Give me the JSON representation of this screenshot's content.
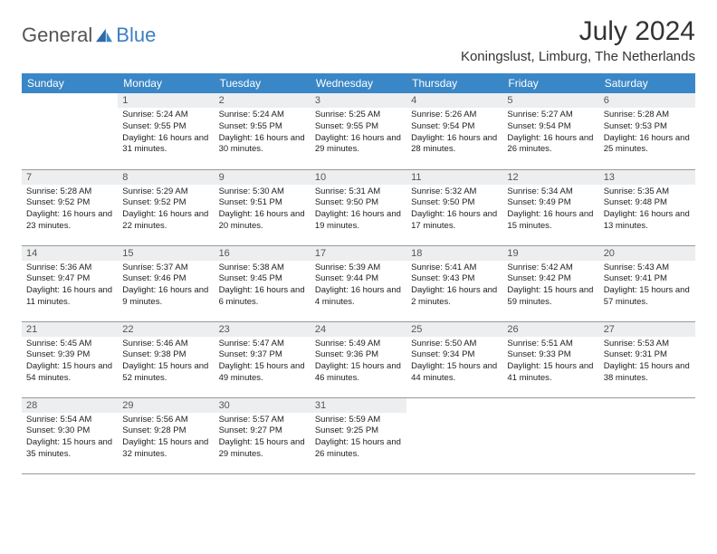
{
  "brand": {
    "part1": "General",
    "part2": "Blue"
  },
  "title": "July 2024",
  "location": "Koningslust, Limburg, The Netherlands",
  "colors": {
    "accent": "#3a87c7",
    "daynum_bg": "#eceef0",
    "border": "#999999"
  },
  "weekdays": [
    "Sunday",
    "Monday",
    "Tuesday",
    "Wednesday",
    "Thursday",
    "Friday",
    "Saturday"
  ],
  "weeks": [
    [
      null,
      {
        "n": "1",
        "sr": "5:24 AM",
        "ss": "9:55 PM",
        "dl": "16 hours and 31 minutes."
      },
      {
        "n": "2",
        "sr": "5:24 AM",
        "ss": "9:55 PM",
        "dl": "16 hours and 30 minutes."
      },
      {
        "n": "3",
        "sr": "5:25 AM",
        "ss": "9:55 PM",
        "dl": "16 hours and 29 minutes."
      },
      {
        "n": "4",
        "sr": "5:26 AM",
        "ss": "9:54 PM",
        "dl": "16 hours and 28 minutes."
      },
      {
        "n": "5",
        "sr": "5:27 AM",
        "ss": "9:54 PM",
        "dl": "16 hours and 26 minutes."
      },
      {
        "n": "6",
        "sr": "5:28 AM",
        "ss": "9:53 PM",
        "dl": "16 hours and 25 minutes."
      }
    ],
    [
      {
        "n": "7",
        "sr": "5:28 AM",
        "ss": "9:52 PM",
        "dl": "16 hours and 23 minutes."
      },
      {
        "n": "8",
        "sr": "5:29 AM",
        "ss": "9:52 PM",
        "dl": "16 hours and 22 minutes."
      },
      {
        "n": "9",
        "sr": "5:30 AM",
        "ss": "9:51 PM",
        "dl": "16 hours and 20 minutes."
      },
      {
        "n": "10",
        "sr": "5:31 AM",
        "ss": "9:50 PM",
        "dl": "16 hours and 19 minutes."
      },
      {
        "n": "11",
        "sr": "5:32 AM",
        "ss": "9:50 PM",
        "dl": "16 hours and 17 minutes."
      },
      {
        "n": "12",
        "sr": "5:34 AM",
        "ss": "9:49 PM",
        "dl": "16 hours and 15 minutes."
      },
      {
        "n": "13",
        "sr": "5:35 AM",
        "ss": "9:48 PM",
        "dl": "16 hours and 13 minutes."
      }
    ],
    [
      {
        "n": "14",
        "sr": "5:36 AM",
        "ss": "9:47 PM",
        "dl": "16 hours and 11 minutes."
      },
      {
        "n": "15",
        "sr": "5:37 AM",
        "ss": "9:46 PM",
        "dl": "16 hours and 9 minutes."
      },
      {
        "n": "16",
        "sr": "5:38 AM",
        "ss": "9:45 PM",
        "dl": "16 hours and 6 minutes."
      },
      {
        "n": "17",
        "sr": "5:39 AM",
        "ss": "9:44 PM",
        "dl": "16 hours and 4 minutes."
      },
      {
        "n": "18",
        "sr": "5:41 AM",
        "ss": "9:43 PM",
        "dl": "16 hours and 2 minutes."
      },
      {
        "n": "19",
        "sr": "5:42 AM",
        "ss": "9:42 PM",
        "dl": "15 hours and 59 minutes."
      },
      {
        "n": "20",
        "sr": "5:43 AM",
        "ss": "9:41 PM",
        "dl": "15 hours and 57 minutes."
      }
    ],
    [
      {
        "n": "21",
        "sr": "5:45 AM",
        "ss": "9:39 PM",
        "dl": "15 hours and 54 minutes."
      },
      {
        "n": "22",
        "sr": "5:46 AM",
        "ss": "9:38 PM",
        "dl": "15 hours and 52 minutes."
      },
      {
        "n": "23",
        "sr": "5:47 AM",
        "ss": "9:37 PM",
        "dl": "15 hours and 49 minutes."
      },
      {
        "n": "24",
        "sr": "5:49 AM",
        "ss": "9:36 PM",
        "dl": "15 hours and 46 minutes."
      },
      {
        "n": "25",
        "sr": "5:50 AM",
        "ss": "9:34 PM",
        "dl": "15 hours and 44 minutes."
      },
      {
        "n": "26",
        "sr": "5:51 AM",
        "ss": "9:33 PM",
        "dl": "15 hours and 41 minutes."
      },
      {
        "n": "27",
        "sr": "5:53 AM",
        "ss": "9:31 PM",
        "dl": "15 hours and 38 minutes."
      }
    ],
    [
      {
        "n": "28",
        "sr": "5:54 AM",
        "ss": "9:30 PM",
        "dl": "15 hours and 35 minutes."
      },
      {
        "n": "29",
        "sr": "5:56 AM",
        "ss": "9:28 PM",
        "dl": "15 hours and 32 minutes."
      },
      {
        "n": "30",
        "sr": "5:57 AM",
        "ss": "9:27 PM",
        "dl": "15 hours and 29 minutes."
      },
      {
        "n": "31",
        "sr": "5:59 AM",
        "ss": "9:25 PM",
        "dl": "15 hours and 26 minutes."
      },
      null,
      null,
      null
    ]
  ],
  "labels": {
    "sunrise": "Sunrise:",
    "sunset": "Sunset:",
    "daylight": "Daylight:"
  }
}
